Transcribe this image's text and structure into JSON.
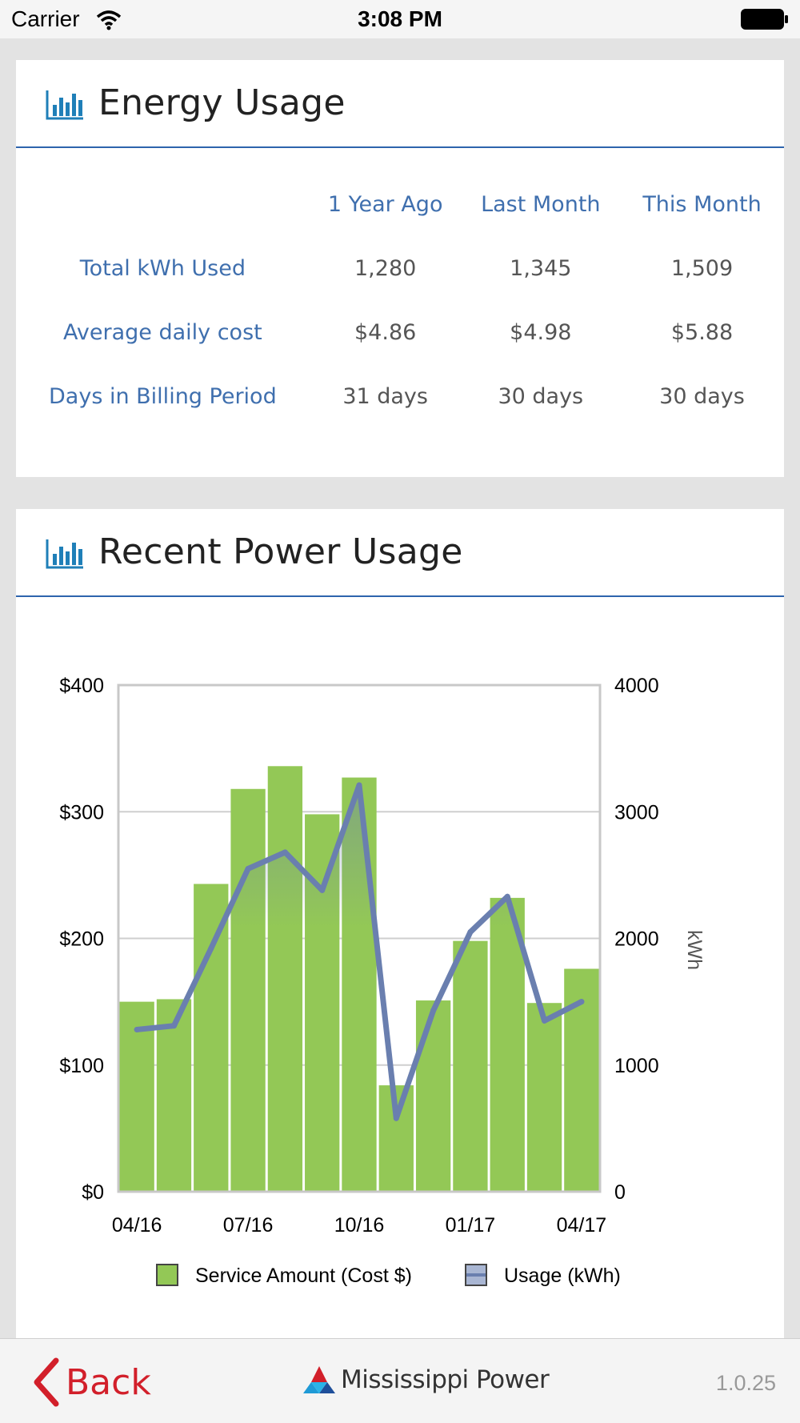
{
  "status": {
    "carrier": "Carrier",
    "time": "3:08 PM"
  },
  "energy": {
    "title": "Energy Usage",
    "columns": [
      "1 Year Ago",
      "Last Month",
      "This Month"
    ],
    "rows": [
      {
        "label": "Total kWh Used",
        "values": [
          "1,280",
          "1,345",
          "1,509"
        ]
      },
      {
        "label": "Average daily cost",
        "values": [
          "$4.86",
          "$4.98",
          "$5.88"
        ]
      },
      {
        "label": "Days in Billing Period",
        "values": [
          "31 days",
          "30 days",
          "30 days"
        ]
      }
    ]
  },
  "recent": {
    "title": "Recent Power Usage"
  },
  "chart_data": {
    "type": "bar",
    "categories": [
      "04/16",
      "05/16",
      "06/16",
      "07/16",
      "08/16",
      "09/16",
      "10/16",
      "11/16",
      "12/16",
      "01/17",
      "02/17",
      "03/17",
      "04/17"
    ],
    "x_tick_labels": [
      "04/16",
      "07/16",
      "10/16",
      "01/17",
      "04/17"
    ],
    "series": [
      {
        "name": "Service Amount (Cost $)",
        "type": "bar",
        "axis": "left",
        "color": "#93c856",
        "values": [
          150,
          152,
          243,
          318,
          336,
          298,
          327,
          84,
          151,
          198,
          232,
          149,
          176
        ]
      },
      {
        "name": "Usage (kWh)",
        "type": "line",
        "axis": "right",
        "color": "#6a7faf",
        "values": [
          1280,
          1310,
          1920,
          2550,
          2680,
          2380,
          3210,
          580,
          1430,
          2050,
          2330,
          1350,
          1500
        ]
      }
    ],
    "y_left": {
      "ticks": [
        "$0",
        "$100",
        "$200",
        "$300",
        "$400"
      ],
      "ylim": [
        0,
        400
      ]
    },
    "y_right": {
      "ticks": [
        "0",
        "1000",
        "2000",
        "3000",
        "4000"
      ],
      "ylim": [
        0,
        4000
      ],
      "label": "kWh"
    },
    "grid": true,
    "legend": "bottom"
  },
  "footer": {
    "back_label": "Back",
    "brand": "Mississippi Power",
    "version": "1.0.25"
  },
  "colors": {
    "accent_blue": "#2e64ad",
    "label_blue": "#3f6fae",
    "back_red": "#d21f2a",
    "bar_green": "#93c856",
    "line_blue": "#6a7faf"
  }
}
